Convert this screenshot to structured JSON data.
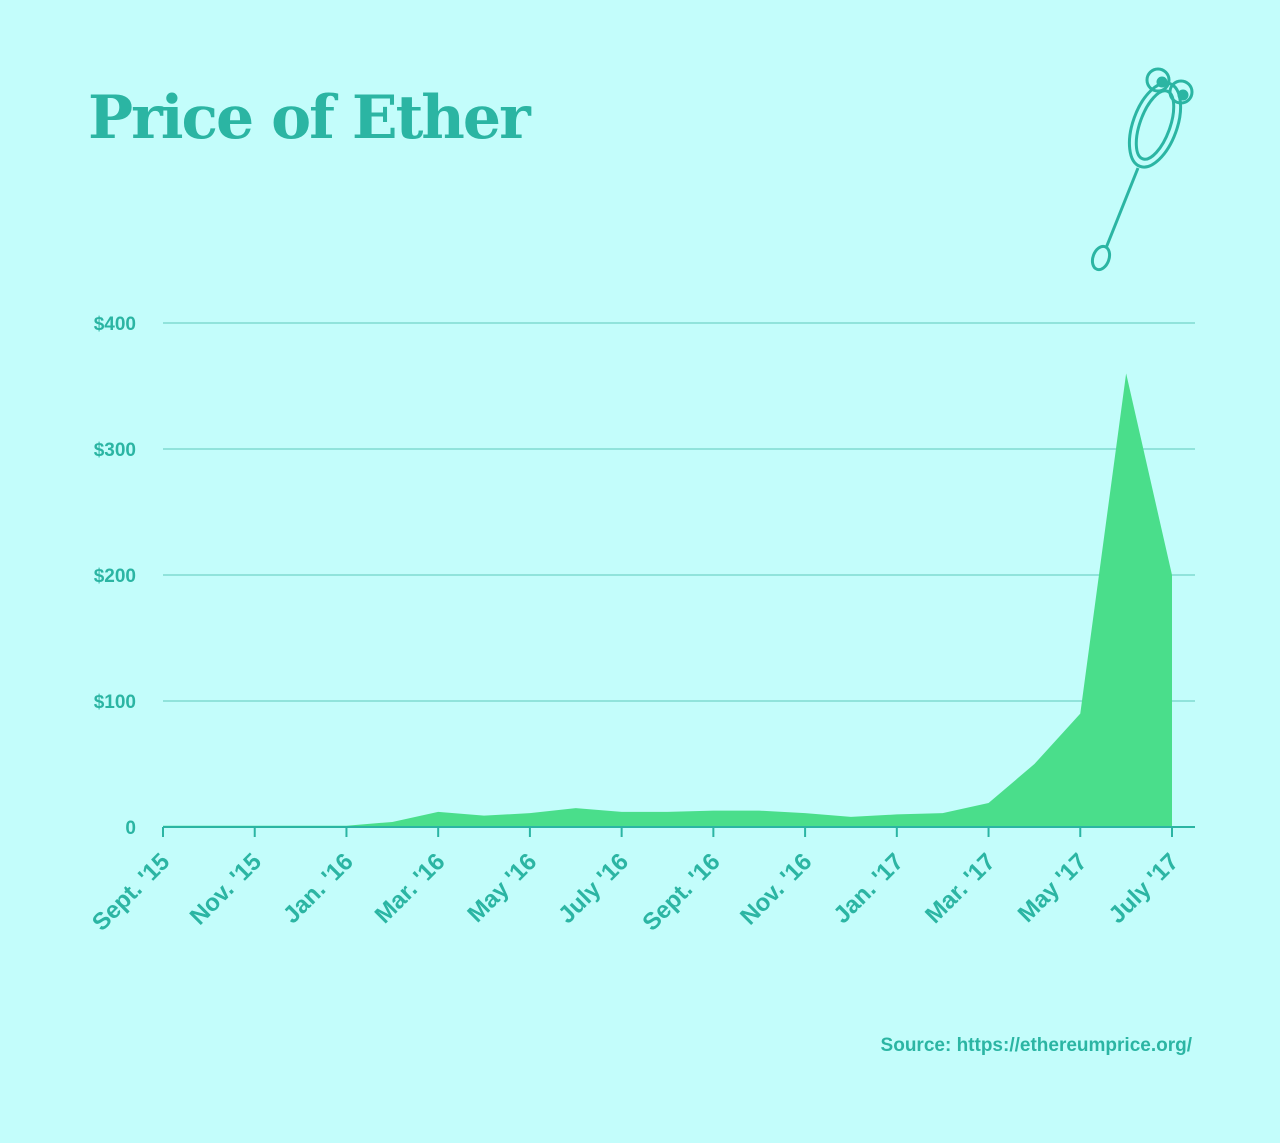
{
  "chart_data": {
    "type": "area",
    "title": "Price of Ether",
    "source": "Source: https://ethereumprice.org/",
    "x": [
      "2015-09",
      "2015-10",
      "2015-11",
      "2015-12",
      "2016-01",
      "2016-02",
      "2016-03",
      "2016-04",
      "2016-05",
      "2016-06",
      "2016-07",
      "2016-08",
      "2016-09",
      "2016-10",
      "2016-11",
      "2016-12",
      "2017-01",
      "2017-02",
      "2017-03",
      "2017-04",
      "2017-05",
      "2017-06",
      "2017-07"
    ],
    "series": [
      {
        "name": "Price of Ether",
        "color": "#4ade8b",
        "values": [
          1,
          1,
          1,
          1,
          1,
          4,
          12,
          9,
          11,
          15,
          12,
          12,
          13,
          13,
          11,
          8,
          10,
          11,
          19,
          50,
          90,
          360,
          200
        ]
      }
    ],
    "xlim": [
      "2015-09",
      "2017-07"
    ],
    "xticks": [
      {
        "value": "2015-09",
        "label": "Sept. '15"
      },
      {
        "value": "2015-11",
        "label": "Nov. '15"
      },
      {
        "value": "2016-01",
        "label": "Jan. '16"
      },
      {
        "value": "2016-03",
        "label": "Mar. '16"
      },
      {
        "value": "2016-05",
        "label": "May '16"
      },
      {
        "value": "2016-07",
        "label": "July '16"
      },
      {
        "value": "2016-09",
        "label": "Sept. '16"
      },
      {
        "value": "2016-11",
        "label": "Nov. '16"
      },
      {
        "value": "2017-01",
        "label": "Jan. '17"
      },
      {
        "value": "2017-03",
        "label": "Mar. '17"
      },
      {
        "value": "2017-05",
        "label": "May '17"
      },
      {
        "value": "2017-07",
        "label": "July '17"
      }
    ],
    "ylim": [
      0,
      400
    ],
    "yticks": [
      0,
      {
        "value": 100,
        "label": "$100"
      },
      {
        "value": 200,
        "label": "$200"
      },
      {
        "value": 300,
        "label": "$300"
      },
      {
        "value": 400,
        "label": "$400"
      }
    ],
    "grid": true
  }
}
